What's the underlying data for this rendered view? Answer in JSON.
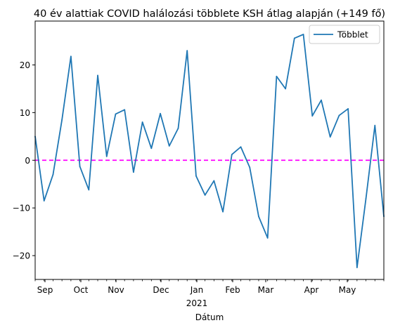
{
  "chart_data": {
    "type": "line",
    "title": "40 év alattiak COVID halálozási többlete KSH átlag alapján (+149 fő)",
    "xlabel": "Dátum",
    "ylabel": "",
    "ylim": [
      -25,
      29.2
    ],
    "yticks": [
      -20,
      -10,
      0,
      10,
      20
    ],
    "xticks": [
      {
        "label": "Sep",
        "sub": ""
      },
      {
        "label": "Oct",
        "sub": ""
      },
      {
        "label": "Nov",
        "sub": ""
      },
      {
        "label": "Dec",
        "sub": ""
      },
      {
        "label": "Jan",
        "sub": "2021"
      },
      {
        "label": "Feb",
        "sub": ""
      },
      {
        "label": "Mar",
        "sub": ""
      },
      {
        "label": "Apr",
        "sub": ""
      },
      {
        "label": "May",
        "sub": ""
      }
    ],
    "legend": {
      "position": "top-right",
      "entries": [
        "Többlet"
      ]
    },
    "grid": false,
    "series": [
      {
        "name": "Többlet",
        "color": "#1f77b4",
        "values": [
          5.0,
          -8.5,
          -3.0,
          8.5,
          21.8,
          -1.3,
          -6.2,
          17.8,
          0.8,
          9.7,
          10.6,
          -2.5,
          8.0,
          2.5,
          9.8,
          3.0,
          6.7,
          23.0,
          -3.3,
          -7.3,
          -4.3,
          -10.8,
          1.2,
          2.8,
          -1.5,
          -11.8,
          -16.3,
          17.6,
          15.0,
          25.6,
          26.4,
          9.3,
          12.6,
          4.9,
          9.4,
          10.8,
          -22.5,
          -8.0,
          7.3,
          -11.8
        ]
      }
    ],
    "reference_line": {
      "y": 0,
      "color": "#ff00ff",
      "style": "dashed"
    }
  }
}
